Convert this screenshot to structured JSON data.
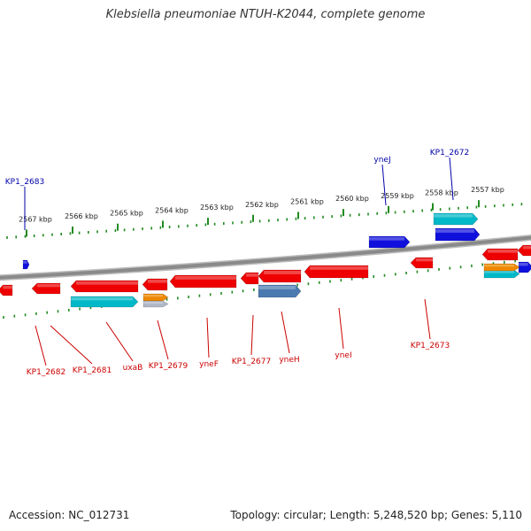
{
  "title": "Klebsiella pneumoniae NTUH-K2044, complete genome",
  "footer": {
    "accession": "Accession: NC_012731",
    "summary": "Topology: circular; Length: 5,248,520 bp; Genes: 5,110"
  },
  "colors": {
    "backbone": "#8a8a8a",
    "tick": "#228b22",
    "ruler_text": "#222222",
    "label_top": "#0000aa",
    "label_bottom": "#cc0000",
    "gene_red": "#ee0000",
    "gene_blue": "#1010dd",
    "gene_cyan": "#00b8c8",
    "gene_orange": "#ee8800",
    "gene_steel": "#4a7ab0",
    "gene_grey": "#b0b8c8"
  },
  "ruler": [
    {
      "label": "2567 kbp"
    },
    {
      "label": "2566 kbp"
    },
    {
      "label": "2565 kbp"
    },
    {
      "label": "2564 kbp"
    },
    {
      "label": "2563 kbp"
    },
    {
      "label": "2562 kbp"
    },
    {
      "label": "2561 kbp"
    },
    {
      "label": "2560 kbp"
    },
    {
      "label": "2559 kbp"
    },
    {
      "label": "2558 kbp"
    },
    {
      "label": "2557 kbp"
    }
  ],
  "top_labels": [
    {
      "label": "KP1_2683"
    },
    {
      "label": "yneJ"
    },
    {
      "label": "KP1_2672"
    }
  ],
  "bottom_labels": [
    {
      "label": "KP1_2682"
    },
    {
      "label": "KP1_2681"
    },
    {
      "label": "uxaB"
    },
    {
      "label": "KP1_2679"
    },
    {
      "label": "yneF"
    },
    {
      "label": "KP1_2677"
    },
    {
      "label": "yneH"
    },
    {
      "label": "yneI"
    },
    {
      "label": "KP1_2673"
    }
  ],
  "gene_colors": [
    "gene_red",
    "gene_red",
    "gene_red",
    "gene_red",
    "gene_red",
    "gene_red",
    "gene_red",
    "gene_red",
    "gene_red",
    "gene_red",
    "gene_red",
    "gene_blue",
    "gene_blue",
    "gene_blue",
    "gene_blue",
    "gene_cyan",
    "gene_cyan",
    "gene_cyan",
    "gene_orange",
    "gene_orange",
    "gene_steel",
    "gene_grey"
  ]
}
